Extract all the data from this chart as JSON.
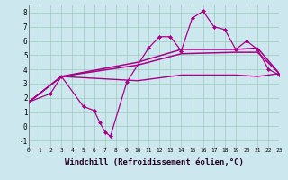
{
  "bg_color": "#cce8ee",
  "line_color": "#aa0088",
  "grid_color": "#99ccbb",
  "xlabel": "Windchill (Refroidissement éolien,°C)",
  "xlabel_fontsize": 6.5,
  "xlim": [
    0,
    23
  ],
  "ylim": [
    -1.5,
    8.5
  ],
  "yticks": [
    -1,
    0,
    1,
    2,
    3,
    4,
    5,
    6,
    7,
    8
  ],
  "xticks": [
    0,
    1,
    2,
    3,
    4,
    5,
    6,
    7,
    8,
    9,
    10,
    11,
    12,
    13,
    14,
    15,
    16,
    17,
    18,
    19,
    20,
    21,
    22,
    23
  ],
  "series": [
    {
      "x": [
        0,
        2,
        3,
        5,
        6,
        6.5,
        7,
        7.5,
        9,
        11,
        12,
        13,
        14,
        15,
        16,
        17,
        18,
        19,
        20,
        21,
        22,
        23
      ],
      "y": [
        1.7,
        2.3,
        3.5,
        1.4,
        1.1,
        0.3,
        -0.4,
        -0.7,
        3.1,
        5.5,
        6.3,
        6.3,
        5.3,
        7.6,
        8.1,
        7.0,
        6.8,
        5.4,
        6.0,
        5.4,
        4.0,
        3.6
      ],
      "marker": "D",
      "markersize": 2.0,
      "linewidth": 0.9
    },
    {
      "x": [
        0,
        3,
        10,
        14,
        19,
        21,
        23
      ],
      "y": [
        1.7,
        3.5,
        4.5,
        5.4,
        5.4,
        5.5,
        3.7
      ],
      "marker": null,
      "linewidth": 1.1
    },
    {
      "x": [
        0,
        3,
        10,
        14,
        19,
        21,
        23
      ],
      "y": [
        1.7,
        3.5,
        4.3,
        5.1,
        5.2,
        5.2,
        3.7
      ],
      "marker": null,
      "linewidth": 1.1
    },
    {
      "x": [
        0,
        3,
        10,
        14,
        19,
        21,
        23
      ],
      "y": [
        1.7,
        3.5,
        3.2,
        3.6,
        3.6,
        3.5,
        3.7
      ],
      "marker": null,
      "linewidth": 1.0
    }
  ]
}
